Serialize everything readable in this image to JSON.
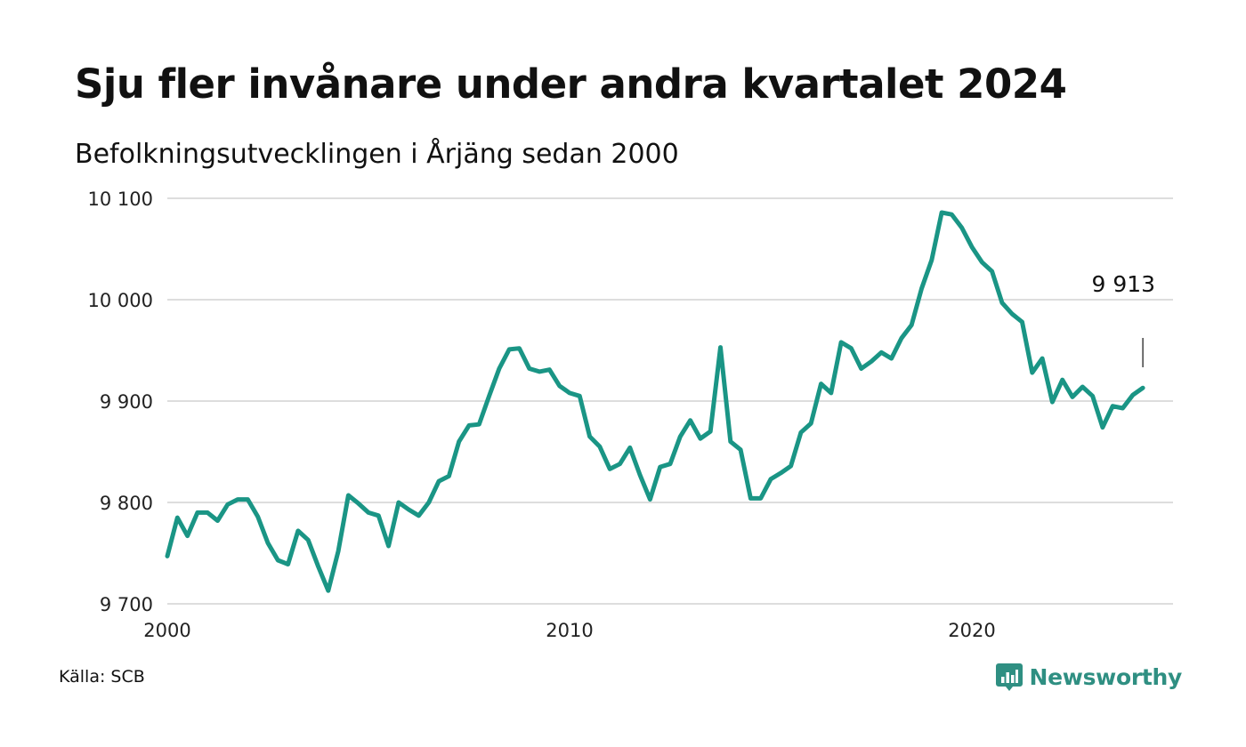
{
  "header": {
    "title": "Sju fler invånare under andra kvartalet 2024",
    "subtitle": "Befolkningsutvecklingen i Årjäng sedan 2000"
  },
  "footer": {
    "source": "Källa: SCB",
    "brand": "Newsworthy",
    "brand_icon": "newsworthy-logo-icon"
  },
  "colors": {
    "line": "#1a9585",
    "grid": "#dddddd",
    "brand": "#2f8f82",
    "text": "#111111"
  },
  "chart_data": {
    "type": "line",
    "title": "Sju fler invånare under andra kvartalet 2024",
    "subtitle": "Befolkningsutvecklingen i Årjäng sedan 2000",
    "xlabel": "",
    "ylabel": "",
    "x_unit": "year (quarterly)",
    "xlim": [
      2000,
      2025
    ],
    "ylim": [
      9700,
      10100
    ],
    "x_ticks": [
      2000,
      2010,
      2020
    ],
    "x_tick_labels": [
      "2000",
      "2010",
      "2020"
    ],
    "y_ticks": [
      9700,
      9800,
      9900,
      10000,
      10100
    ],
    "y_tick_labels": [
      "9 700",
      "9 800",
      "9 900",
      "10 000",
      "10 100"
    ],
    "grid": true,
    "legend": "none",
    "annotation": {
      "label": "9 913",
      "x": 2024.25,
      "value": 9913
    },
    "series": [
      {
        "x": [
          2000.0,
          2000.25,
          2000.5,
          2000.75,
          2001.0,
          2001.25,
          2001.5,
          2001.75,
          2002.0,
          2002.25,
          2002.5,
          2002.75,
          2003.0,
          2003.25,
          2003.5,
          2003.75,
          2004.0,
          2004.25,
          2004.5,
          2004.75,
          2005.0,
          2005.25,
          2005.5,
          2005.75,
          2006.0,
          2006.25,
          2006.5,
          2006.75,
          2007.0,
          2007.25,
          2007.5,
          2007.75,
          2008.0,
          2008.25,
          2008.5,
          2008.75,
          2009.0,
          2009.25,
          2009.5,
          2009.75,
          2010.0,
          2010.25,
          2010.5,
          2010.75,
          2011.0,
          2011.25,
          2011.5,
          2011.75,
          2012.0,
          2012.25,
          2012.5,
          2012.75,
          2013.0,
          2013.25,
          2013.5,
          2013.75,
          2014.0,
          2014.25,
          2014.5,
          2014.75,
          2015.0,
          2015.25,
          2015.5,
          2015.75,
          2016.0,
          2016.25,
          2016.5,
          2016.75,
          2017.0,
          2017.25,
          2017.5,
          2017.75,
          2018.0,
          2018.25,
          2018.5,
          2018.75,
          2019.0,
          2019.25,
          2019.5,
          2019.75,
          2020.0,
          2020.25,
          2020.5,
          2020.75,
          2021.0,
          2021.25,
          2021.5,
          2021.75,
          2022.0,
          2022.25,
          2022.5,
          2022.75,
          2023.0,
          2023.25,
          2023.5,
          2023.75,
          2024.0,
          2024.25
        ],
        "values": [
          9747,
          9785,
          9767,
          9790,
          9790,
          9782,
          9798,
          9803,
          9803,
          9786,
          9760,
          9743,
          9739,
          9772,
          9763,
          9737,
          9713,
          9752,
          9807,
          9799,
          9790,
          9787,
          9757,
          9800,
          9793,
          9787,
          9800,
          9821,
          9826,
          9860,
          9876,
          9877,
          9905,
          9932,
          9951,
          9952,
          9932,
          9929,
          9931,
          9915,
          9908,
          9905,
          9865,
          9855,
          9833,
          9838,
          9854,
          9827,
          9803,
          9835,
          9838,
          9865,
          9881,
          9863,
          9870,
          9953,
          9860,
          9852,
          9804,
          9804,
          9823,
          9829,
          9836,
          9869,
          9878,
          9917,
          9908,
          9958,
          9952,
          9932,
          9939,
          9948,
          9942,
          9962,
          9975,
          10011,
          10039,
          10086,
          10084,
          10071,
          10052,
          10037,
          10028,
          9997,
          9986,
          9978,
          9928,
          9942,
          9899,
          9921,
          9904,
          9914,
          9905,
          9874,
          9895,
          9893,
          9906,
          9913
        ]
      }
    ]
  }
}
